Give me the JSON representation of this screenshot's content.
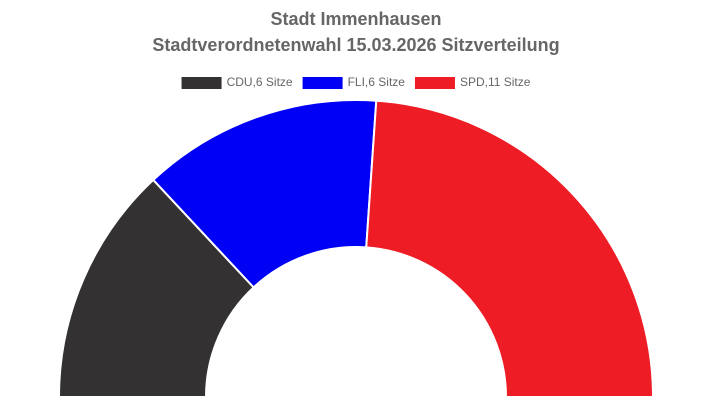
{
  "chart_data": {
    "type": "half-doughnut",
    "title": [
      "Stadt Immenhausen",
      "Stadtverordnetenwahl 15.03.2026 Sitzverteilung"
    ],
    "categories": [
      "CDU,6 Sitze",
      "FLI,6 Sitze",
      "SPD,11 Sitze"
    ],
    "values": [
      6,
      6,
      11
    ],
    "colors": [
      "#333132",
      "#0000f5",
      "#ee1c25"
    ],
    "legend": "top"
  }
}
